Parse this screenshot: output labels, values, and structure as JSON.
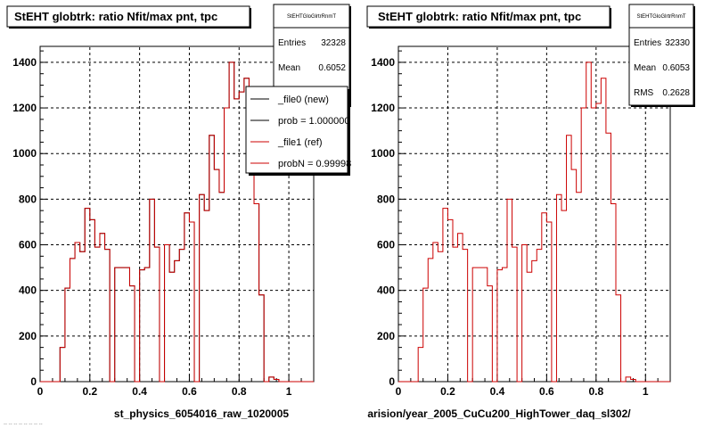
{
  "chart_data": [
    {
      "type": "histogram",
      "title": "StEHT globtrk: ratio Nfit/max pnt, tpc",
      "xlabel": "st_physics_6054016_raw_1020005",
      "xlim": [
        0,
        1.1
      ],
      "ylim": [
        0,
        1470
      ],
      "x_ticks": [
        0,
        0.2,
        0.4,
        0.6,
        0.8,
        1
      ],
      "x_tick_labels": [
        "0",
        "0.2",
        "0.4",
        "0.6",
        "0.8",
        "1"
      ],
      "y_ticks": [
        0,
        200,
        400,
        600,
        800,
        1000,
        1200,
        1400
      ],
      "grid": true,
      "bin_edges_start": 0.0,
      "bin_width": 0.02,
      "series": [
        {
          "name": "_file0 (new)",
          "color": "#000000",
          "values": [
            0,
            0,
            0,
            0,
            150,
            410,
            540,
            610,
            570,
            760,
            710,
            590,
            650,
            580,
            0,
            500,
            500,
            500,
            420,
            0,
            490,
            500,
            800,
            590,
            0,
            600,
            480,
            530,
            580,
            740,
            700,
            0,
            820,
            750,
            1080,
            930,
            830,
            1200,
            1400,
            1240,
            1270,
            1330,
            1090,
            780,
            380,
            0,
            20,
            10,
            0,
            0,
            0,
            0,
            0,
            0,
            0
          ]
        },
        {
          "name": "_file1 (ref)",
          "color": "#cc0000",
          "values": [
            0,
            0,
            0,
            0,
            150,
            410,
            540,
            610,
            570,
            760,
            710,
            590,
            650,
            580,
            0,
            500,
            500,
            500,
            420,
            0,
            490,
            500,
            800,
            590,
            0,
            600,
            480,
            530,
            580,
            740,
            700,
            0,
            820,
            750,
            1080,
            930,
            830,
            1200,
            1400,
            1240,
            1270,
            1330,
            1090,
            780,
            380,
            0,
            20,
            10,
            0,
            0,
            0,
            0,
            0,
            0,
            0
          ]
        }
      ],
      "stats": {
        "header": "StEHTGloGlrtrRnmT",
        "Entries": "32328",
        "Mean": "0.6052"
      },
      "legend": {
        "placement": "top-right",
        "entries": [
          {
            "label": "_file0 (new)",
            "color": "#000000"
          },
          {
            "label": "prob = 1.000000",
            "color": "#000000"
          },
          {
            "label": "_file1 (ref)",
            "color": "#cc0000"
          },
          {
            "label": "probN = 0.99998",
            "color": "#cc0000"
          }
        ]
      }
    },
    {
      "type": "histogram",
      "title": "StEHT globtrk: ratio Nfit/max pnt, tpc",
      "xlabel": "arision/year_2005_CuCu200_HighTower_daq_sl302/",
      "xlim": [
        0,
        1.1
      ],
      "ylim": [
        0,
        1470
      ],
      "x_ticks": [
        0,
        0.2,
        0.4,
        0.6,
        0.8,
        1
      ],
      "x_tick_labels": [
        "0",
        "0.2",
        "0.4",
        "0.6",
        "0.8",
        "1"
      ],
      "y_ticks": [
        0,
        200,
        400,
        600,
        800,
        1000,
        1200,
        1400
      ],
      "grid": true,
      "bin_edges_start": 0.0,
      "bin_width": 0.02,
      "series": [
        {
          "color": "#cc0000",
          "values": [
            0,
            0,
            0,
            0,
            150,
            410,
            540,
            610,
            570,
            760,
            710,
            590,
            650,
            580,
            0,
            500,
            500,
            500,
            420,
            0,
            490,
            500,
            800,
            590,
            0,
            600,
            480,
            530,
            580,
            740,
            700,
            0,
            820,
            750,
            1080,
            930,
            830,
            1200,
            1400,
            1200,
            1220,
            1330,
            1090,
            780,
            380,
            0,
            20,
            10,
            0,
            0,
            0,
            0,
            0,
            0,
            0
          ]
        }
      ],
      "stats": {
        "header": "StEHTGloGlrtrRnmT",
        "Entries": "32330",
        "Mean": "0.6053",
        "RMS": "0.2628"
      }
    }
  ],
  "ui": {
    "bottom_left_text": "-- -- -- -- -- -- -- --"
  }
}
